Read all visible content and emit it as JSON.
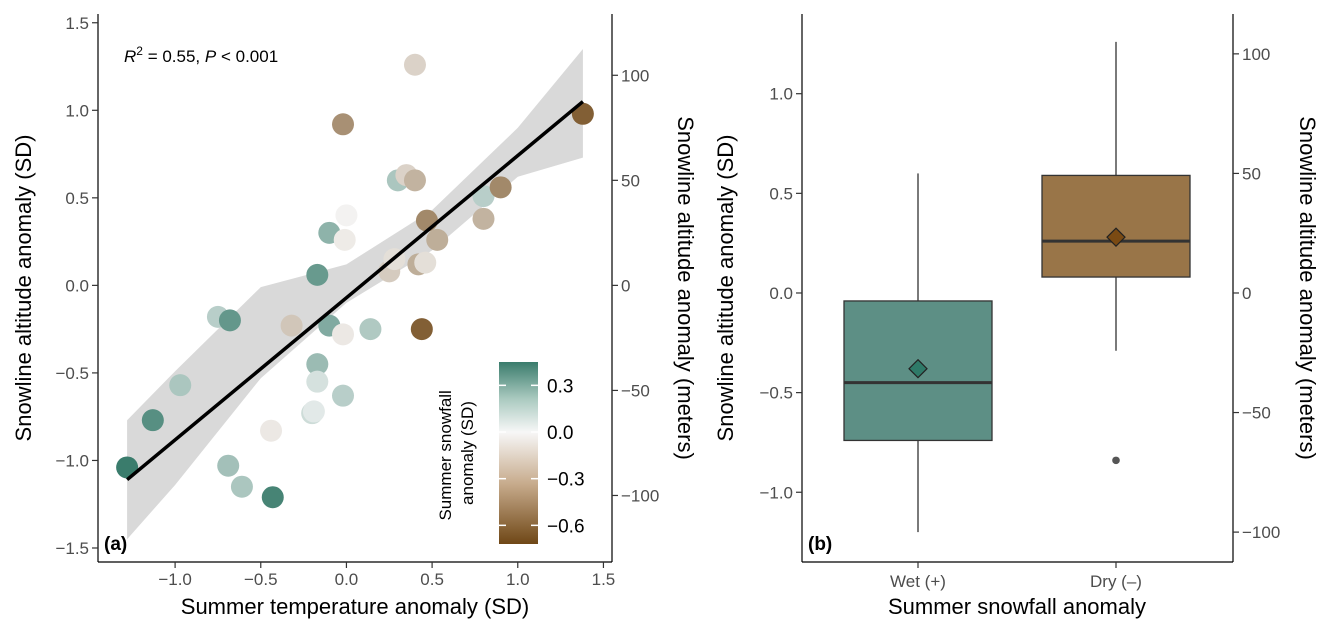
{
  "chart_data": [
    {
      "type": "scatter",
      "panel_label": "(a)",
      "xlabel": "Summer temperature anomaly (SD)",
      "ylabel": "Snowline altitude anomaly (SD)",
      "ylabel_right": "Snowline altitude anomaly (meters)",
      "xlim": [
        -1.45,
        1.55
      ],
      "ylim": [
        -1.58,
        1.55
      ],
      "x_ticks": [
        "-1.0",
        "-0.5",
        "0.0",
        "0.5",
        "1.0",
        "1.5"
      ],
      "y_ticks": [
        "-1.5",
        "-1.0",
        "-0.5",
        "0.0",
        "0.5",
        "1.0",
        "1.5"
      ],
      "right_ticks": [
        "-100",
        "-50",
        "0",
        "50",
        "100"
      ],
      "annotation": {
        "r2_label": "R",
        "r2_sup": "2",
        "r2_value": " = 0.55, ",
        "p_label": "P",
        "p_value": " < 0.001"
      },
      "fit_line": {
        "x": [
          -1.28,
          1.38
        ],
        "y": [
          -1.11,
          1.05
        ]
      },
      "confidence_band": {
        "x": [
          -1.28,
          -1.0,
          -0.5,
          0.0,
          0.5,
          1.0,
          1.38
        ],
        "upper": [
          -0.77,
          -0.49,
          -0.01,
          0.12,
          0.43,
          0.9,
          1.35
        ],
        "lower": [
          -1.45,
          -1.14,
          -0.53,
          -0.1,
          0.2,
          0.62,
          0.73
        ]
      },
      "colorbar": {
        "title_line1": "Summer snowfall",
        "title_line2": "anomaly (SD)",
        "ticks": [
          "0.3",
          "0.0",
          "-0.3",
          "-0.6"
        ],
        "range": [
          -0.72,
          0.45
        ],
        "colors": {
          "high": "#3a7c6c",
          "mid": "#f7f7f7",
          "low": "#6f4716"
        }
      },
      "points": [
        {
          "x": -1.28,
          "y": -1.04,
          "c": 0.45
        },
        {
          "x": -1.13,
          "y": -0.77,
          "c": 0.38
        },
        {
          "x": -0.97,
          "y": -0.57,
          "c": 0.18
        },
        {
          "x": -0.75,
          "y": -0.18,
          "c": 0.15
        },
        {
          "x": -0.68,
          "y": -0.2,
          "c": 0.35
        },
        {
          "x": -0.69,
          "y": -1.03,
          "c": 0.2
        },
        {
          "x": -0.61,
          "y": -1.15,
          "c": 0.18
        },
        {
          "x": -0.43,
          "y": -1.21,
          "c": 0.42
        },
        {
          "x": -0.44,
          "y": -0.83,
          "c": -0.06
        },
        {
          "x": -0.32,
          "y": -0.23,
          "c": -0.2
        },
        {
          "x": -0.2,
          "y": -0.73,
          "c": 0.1
        },
        {
          "x": -0.19,
          "y": -0.72,
          "c": 0.05
        },
        {
          "x": -0.17,
          "y": 0.06,
          "c": 0.34
        },
        {
          "x": -0.17,
          "y": -0.45,
          "c": 0.22
        },
        {
          "x": -0.17,
          "y": -0.55,
          "c": 0.08
        },
        {
          "x": -0.1,
          "y": 0.3,
          "c": 0.25
        },
        {
          "x": -0.1,
          "y": -0.23,
          "c": 0.28
        },
        {
          "x": -0.02,
          "y": 0.92,
          "c": -0.42
        },
        {
          "x": -0.02,
          "y": -0.63,
          "c": 0.15
        },
        {
          "x": -0.02,
          "y": -0.28,
          "c": -0.06
        },
        {
          "x": -0.01,
          "y": 0.26,
          "c": -0.05
        },
        {
          "x": 0.0,
          "y": 0.4,
          "c": -0.02
        },
        {
          "x": 0.14,
          "y": -0.25,
          "c": 0.17
        },
        {
          "x": 0.25,
          "y": 0.08,
          "c": -0.18
        },
        {
          "x": 0.28,
          "y": 0.15,
          "c": -0.1
        },
        {
          "x": 0.3,
          "y": 0.6,
          "c": 0.18
        },
        {
          "x": 0.35,
          "y": 0.63,
          "c": -0.15
        },
        {
          "x": 0.4,
          "y": 1.26,
          "c": -0.15
        },
        {
          "x": 0.4,
          "y": 0.6,
          "c": -0.28
        },
        {
          "x": 0.42,
          "y": 0.12,
          "c": -0.3
        },
        {
          "x": 0.44,
          "y": -0.25,
          "c": -0.62
        },
        {
          "x": 0.46,
          "y": 0.13,
          "c": -0.1
        },
        {
          "x": 0.47,
          "y": 0.37,
          "c": -0.45
        },
        {
          "x": 0.53,
          "y": 0.26,
          "c": -0.3
        },
        {
          "x": 0.8,
          "y": 0.51,
          "c": 0.15
        },
        {
          "x": 0.8,
          "y": 0.38,
          "c": -0.28
        },
        {
          "x": 0.9,
          "y": 0.56,
          "c": -0.45
        },
        {
          "x": 1.38,
          "y": 0.98,
          "c": -0.62
        }
      ]
    },
    {
      "type": "box",
      "panel_label": "(b)",
      "xlabel": "Summer snowfall anomaly",
      "ylabel": "Snowline altitude anomaly (SD)",
      "ylabel_right": "Snowline altitude anomaly (meters)",
      "ylim": [
        -1.35,
        1.4
      ],
      "y_ticks": [
        "-1.0",
        "-0.5",
        "0.0",
        "0.5",
        "1.0"
      ],
      "right_ticks": [
        "-100",
        "-50",
        "0",
        "50",
        "100"
      ],
      "categories": [
        "Wet (+)",
        "Dry (–)"
      ],
      "boxes": [
        {
          "min": -1.2,
          "q1": -0.74,
          "median": -0.45,
          "q3": -0.04,
          "max": 0.6,
          "mean": -0.38,
          "outliers": [],
          "fill": "#5d8f85",
          "mean_fill": "#2e7a68"
        },
        {
          "min": -0.29,
          "q1": 0.08,
          "median": 0.26,
          "q3": 0.59,
          "max": 1.26,
          "mean": 0.28,
          "outliers": [
            -0.84
          ],
          "fill": "#997548",
          "mean_fill": "#7a4a13"
        }
      ]
    }
  ]
}
